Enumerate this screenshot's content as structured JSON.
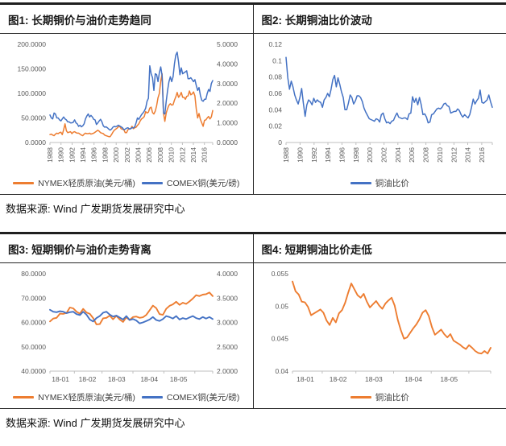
{
  "sources": [
    "数据来源: Wind 广发期货发展研究中心",
    "数据来源: Wind 广发期货发展研究中心"
  ],
  "colors": {
    "oil": "#ED7D31",
    "copper": "#4472C4",
    "axis_text": "#595959",
    "axis_line": "#BFBFBF",
    "table_border": "#1F1F1F"
  },
  "chart_data": [
    {
      "type": "line",
      "title": "图1: 长期铜价与油价走势趋同",
      "legend_position": "bottom",
      "x_axis": {
        "rotate": true,
        "labels": [
          "1988",
          "1990",
          "1992",
          "1994",
          "1996",
          "1998",
          "2000",
          "2002",
          "2004",
          "2006",
          "2008",
          "2010",
          "2012",
          "2014",
          "2016"
        ],
        "label_pos": [
          0,
          0.068,
          0.136,
          0.203,
          0.271,
          0.339,
          0.407,
          0.475,
          0.542,
          0.61,
          0.678,
          0.746,
          0.814,
          0.881,
          0.949
        ],
        "tick_pos": [
          0,
          0.068,
          0.136,
          0.203,
          0.271,
          0.339,
          0.407,
          0.475,
          0.542,
          0.61,
          0.678,
          0.746,
          0.814,
          0.881,
          0.949,
          1.0
        ]
      },
      "left_axis": {
        "min": 0,
        "max": 200,
        "tick_values": [
          0,
          50,
          100,
          150,
          200
        ],
        "tick_labels": [
          "0.0000",
          "50.0000",
          "100.0000",
          "150.0000",
          "200.0000"
        ]
      },
      "right_axis": {
        "min": 0,
        "max": 5,
        "tick_values": [
          0,
          1,
          2,
          3,
          4,
          5
        ],
        "tick_labels": [
          "0.0000",
          "1.0000",
          "2.0000",
          "3.0000",
          "4.0000",
          "5.0000"
        ]
      },
      "series": [
        {
          "name": "NYMEX轻质原油(美元/桶)",
          "color": "#ED7D31",
          "axis": "left",
          "values": [
            16,
            17,
            15,
            14,
            17,
            19,
            18,
            20,
            21,
            16,
            26,
            38,
            24,
            20,
            21,
            22,
            18,
            21,
            22,
            20,
            19,
            19,
            17,
            15,
            14,
            17,
            19,
            18,
            18,
            19,
            17,
            18,
            19,
            21,
            23,
            25,
            23,
            20,
            19,
            18,
            15,
            14,
            13,
            12,
            12,
            16,
            21,
            25,
            27,
            29,
            32,
            33,
            28,
            27,
            26,
            20,
            20,
            26,
            28,
            28,
            33,
            28,
            30,
            31,
            35,
            38,
            44,
            48,
            50,
            53,
            63,
            60,
            62,
            70,
            72,
            61,
            58,
            64,
            75,
            91,
            100,
            125,
            140,
            60,
            43,
            60,
            69,
            76,
            79,
            76,
            77,
            86,
            93,
            102,
            92,
            96,
            102,
            92,
            92,
            88,
            94,
            95,
            105,
            97,
            99,
            103,
            95,
            68,
            50,
            59,
            47,
            40,
            33,
            45,
            46,
            50,
            53,
            48,
            52,
            65
          ]
        },
        {
          "name": "COMEX铜(美元/磅)",
          "color": "#4472C4",
          "axis": "right",
          "values": [
            1.4,
            1.25,
            1.2,
            1.5,
            1.45,
            1.25,
            1.25,
            1.15,
            1.1,
            1.2,
            1.3,
            1.2,
            1.15,
            1.05,
            1.05,
            1.0,
            1.0,
            1.03,
            1.15,
            1.0,
            0.95,
            0.82,
            0.88,
            0.8,
            0.85,
            0.95,
            1.2,
            1.35,
            1.45,
            1.3,
            1.38,
            1.3,
            1.18,
            1.15,
            0.92,
            1.0,
            1.1,
            1.18,
            1.05,
            0.85,
            0.78,
            0.8,
            0.75,
            0.68,
            0.63,
            0.68,
            0.78,
            0.82,
            0.8,
            0.83,
            0.88,
            0.84,
            0.8,
            0.75,
            0.65,
            0.68,
            0.73,
            0.75,
            0.68,
            0.7,
            0.76,
            0.74,
            0.8,
            1.0,
            1.25,
            1.18,
            1.3,
            1.42,
            1.5,
            1.6,
            1.75,
            2.1,
            2.25,
            3.9,
            3.5,
            3.3,
            2.65,
            3.5,
            3.45,
            3.1,
            3.55,
            3.85,
            3.4,
            1.5,
            1.45,
            2.1,
            2.65,
            3.1,
            3.35,
            3.1,
            3.35,
            4.0,
            4.45,
            4.6,
            4.1,
            3.45,
            3.8,
            3.5,
            3.55,
            3.6,
            3.65,
            3.25,
            3.25,
            3.3,
            3.2,
            3.1,
            3.2,
            2.9,
            2.65,
            2.8,
            2.4,
            2.15,
            2.1,
            2.2,
            2.2,
            2.5,
            2.7,
            2.6,
            3.0,
            3.15
          ]
        }
      ]
    },
    {
      "type": "line",
      "title": "图2: 长期铜油比价波动",
      "legend_position": "bottom",
      "x_axis": {
        "rotate": true,
        "labels": [
          "1988",
          "1990",
          "1992",
          "1994",
          "1996",
          "1998",
          "2000",
          "2002",
          "2004",
          "2006",
          "2008",
          "2010",
          "2012",
          "2014",
          "2016"
        ],
        "label_pos": [
          0,
          0.068,
          0.136,
          0.203,
          0.271,
          0.339,
          0.407,
          0.475,
          0.542,
          0.61,
          0.678,
          0.746,
          0.814,
          0.881,
          0.949
        ],
        "tick_pos": [
          0,
          0.068,
          0.136,
          0.203,
          0.271,
          0.339,
          0.407,
          0.475,
          0.542,
          0.61,
          0.678,
          0.746,
          0.814,
          0.881,
          0.949,
          1.0
        ]
      },
      "left_axis": {
        "min": 0,
        "max": 0.12,
        "tick_values": [
          0,
          0.02,
          0.04,
          0.06,
          0.08,
          0.1,
          0.12
        ],
        "tick_labels": [
          "0",
          "0.02",
          "0.04",
          "0.06",
          "0.08",
          "0.1",
          "0.12"
        ]
      },
      "series": [
        {
          "name": "铜油比价",
          "color": "#4472C4",
          "axis": "left",
          "values": [
            0.104,
            0.079,
            0.065,
            0.075,
            0.068,
            0.058,
            0.052,
            0.047,
            0.055,
            0.066,
            0.048,
            0.032,
            0.046,
            0.052,
            0.05,
            0.046,
            0.054,
            0.049,
            0.052,
            0.05,
            0.049,
            0.043,
            0.052,
            0.055,
            0.06,
            0.056,
            0.065,
            0.077,
            0.082,
            0.068,
            0.079,
            0.071,
            0.062,
            0.055,
            0.04,
            0.04,
            0.048,
            0.058,
            0.055,
            0.047,
            0.051,
            0.057,
            0.057,
            0.055,
            0.05,
            0.042,
            0.037,
            0.033,
            0.029,
            0.028,
            0.027,
            0.026,
            0.029,
            0.028,
            0.025,
            0.034,
            0.036,
            0.029,
            0.024,
            0.025,
            0.023,
            0.026,
            0.027,
            0.032,
            0.036,
            0.031,
            0.03,
            0.029,
            0.03,
            0.03,
            0.028,
            0.035,
            0.036,
            0.056,
            0.049,
            0.054,
            0.046,
            0.055,
            0.046,
            0.034,
            0.035,
            0.031,
            0.024,
            0.025,
            0.034,
            0.035,
            0.038,
            0.041,
            0.042,
            0.041,
            0.043,
            0.047,
            0.048,
            0.045,
            0.044,
            0.036,
            0.037,
            0.038,
            0.038,
            0.041,
            0.039,
            0.034,
            0.031,
            0.034,
            0.032,
            0.03,
            0.034,
            0.043,
            0.053,
            0.047,
            0.051,
            0.054,
            0.064,
            0.049,
            0.048,
            0.05,
            0.052,
            0.058,
            0.05,
            0.043
          ]
        }
      ]
    },
    {
      "type": "line",
      "title": "图3: 短期铜价与油价走势背离",
      "legend_position": "bottom",
      "x_axis": {
        "rotate": false,
        "labels": [
          "18-01",
          "18-02",
          "18-03",
          "18-04",
          "18-05"
        ],
        "label_pos": [
          0.065,
          0.23,
          0.41,
          0.61,
          0.79
        ],
        "tick_pos": [
          0,
          0.15,
          0.32,
          0.51,
          0.7,
          0.89,
          1.0
        ]
      },
      "left_axis": {
        "min": 40,
        "max": 80,
        "tick_values": [
          40,
          50,
          60,
          70,
          80
        ],
        "tick_labels": [
          "40.0000",
          "50.0000",
          "60.0000",
          "70.0000",
          "80.0000"
        ]
      },
      "right_axis": {
        "min": 2,
        "max": 4,
        "tick_values": [
          2,
          2.5,
          3,
          3.5,
          4
        ],
        "tick_labels": [
          "2.0000",
          "2.5000",
          "3.0000",
          "3.5000",
          "4.0000"
        ]
      },
      "series": [
        {
          "name": "NYMEX轻质原油(美元/桶)",
          "color": "#ED7D31",
          "axis": "left",
          "values": [
            60.4,
            61.6,
            61.9,
            63.6,
            63.5,
            63.9,
            66.1,
            65.8,
            64.4,
            63.6,
            65.6,
            64.1,
            63.5,
            61.8,
            59.2,
            59.3,
            61.7,
            61.9,
            62.8,
            61.3,
            62.7,
            61.2,
            60.2,
            62.1,
            61.0,
            62.2,
            62.4,
            61.9,
            62.1,
            63.1,
            65.0,
            66.9,
            65.9,
            63.4,
            63.1,
            65.6,
            66.8,
            67.4,
            68.5,
            67.2,
            68.1,
            67.6,
            68.6,
            69.8,
            71.2,
            70.8,
            71.4,
            71.6,
            72.3,
            70.8
          ]
        },
        {
          "name": "COMEX铜(美元/磅)",
          "color": "#4472C4",
          "axis": "right",
          "values": [
            3.26,
            3.22,
            3.21,
            3.23,
            3.22,
            3.19,
            3.21,
            3.22,
            3.17,
            3.15,
            3.22,
            3.16,
            3.06,
            3.02,
            3.09,
            3.13,
            3.2,
            3.22,
            3.16,
            3.12,
            3.14,
            3.1,
            3.06,
            3.13,
            3.05,
            3.07,
            3.04,
            2.98,
            3.0,
            3.03,
            3.06,
            3.11,
            3.05,
            3.03,
            3.07,
            3.13,
            3.11,
            3.08,
            3.13,
            3.06,
            3.09,
            3.07,
            3.1,
            3.13,
            3.09,
            3.07,
            3.11,
            3.08,
            3.11,
            3.07
          ]
        }
      ]
    },
    {
      "type": "line",
      "title": "图4: 短期铜油比价走低",
      "legend_position": "bottom",
      "x_axis": {
        "rotate": false,
        "labels": [
          "18-01",
          "18-02",
          "18-03",
          "18-04",
          "18-05"
        ],
        "label_pos": [
          0.065,
          0.23,
          0.41,
          0.61,
          0.79
        ],
        "tick_pos": [
          0,
          0.15,
          0.32,
          0.51,
          0.7,
          0.89,
          1.0
        ]
      },
      "left_axis": {
        "min": 0.04,
        "max": 0.055,
        "tick_values": [
          0.04,
          0.045,
          0.05,
          0.055
        ],
        "tick_labels": [
          "0.04",
          "0.045",
          "0.05",
          "0.055"
        ]
      },
      "series": [
        {
          "name": "铜油比价",
          "color": "#ED7D31",
          "axis": "left",
          "values": [
            0.0538,
            0.0523,
            0.0518,
            0.0507,
            0.0506,
            0.0499,
            0.0486,
            0.0489,
            0.0492,
            0.0495,
            0.049,
            0.0478,
            0.0471,
            0.0482,
            0.0475,
            0.0489,
            0.0494,
            0.0505,
            0.0521,
            0.0535,
            0.0526,
            0.0517,
            0.0513,
            0.0519,
            0.0507,
            0.0498,
            0.0503,
            0.0508,
            0.0501,
            0.0496,
            0.0504,
            0.0509,
            0.0513,
            0.0501,
            0.0479,
            0.0463,
            0.045,
            0.0452,
            0.0459,
            0.0466,
            0.0472,
            0.048,
            0.049,
            0.0494,
            0.0485,
            0.0468,
            0.0456,
            0.046,
            0.0464,
            0.0457,
            0.0452,
            0.0457,
            0.0447,
            0.0444,
            0.0441,
            0.0437,
            0.0434,
            0.044,
            0.0436,
            0.0431,
            0.0428,
            0.0427,
            0.0431,
            0.0427,
            0.0436
          ]
        }
      ]
    }
  ]
}
